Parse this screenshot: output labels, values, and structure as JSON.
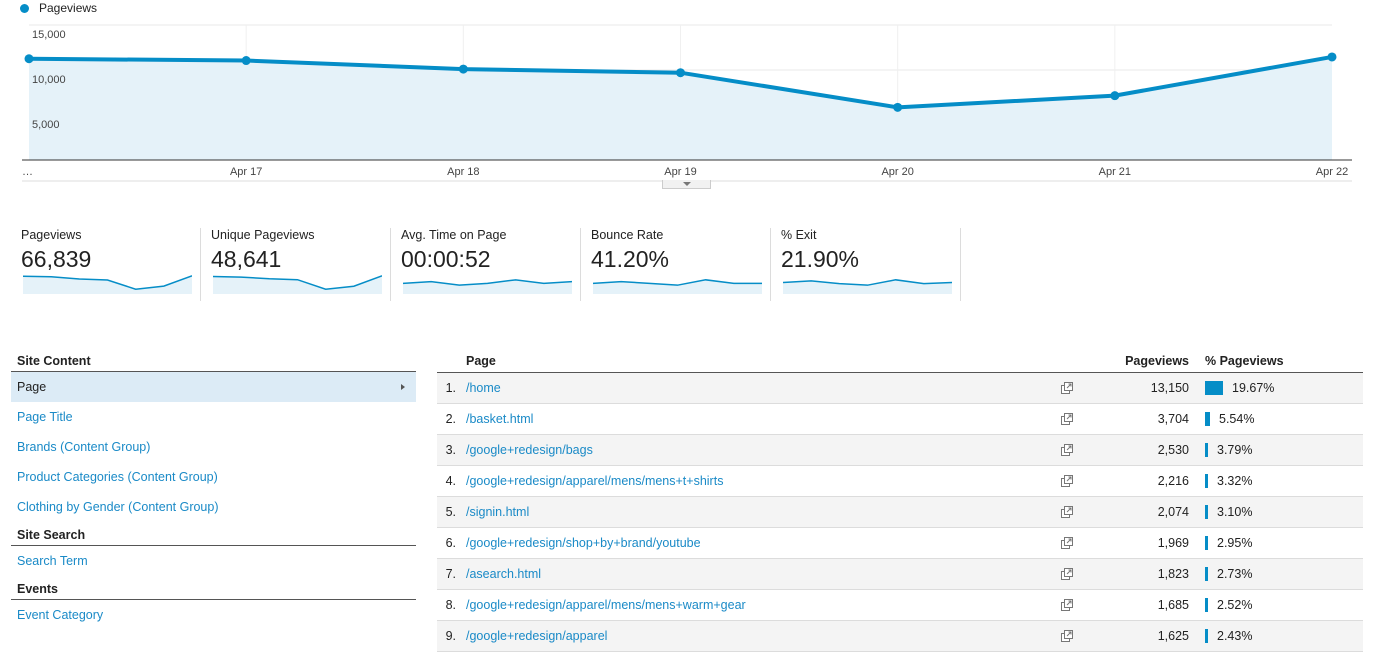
{
  "chart_data": {
    "type": "area",
    "legend": "Pageviews",
    "categories": [
      "…",
      "Apr 17",
      "Apr 18",
      "Apr 19",
      "Apr 20",
      "Apr 21",
      "Apr 22"
    ],
    "values": [
      11250,
      11050,
      10100,
      9700,
      5850,
      7150,
      11450
    ],
    "y_ticks": [
      "15,000",
      "10,000",
      "5,000"
    ],
    "y_tick_values": [
      15000,
      10000,
      5000
    ],
    "ylim": [
      0,
      15000
    ],
    "color": "#058dc7",
    "fill": "#e5f2f9",
    "grid": true,
    "legend_position": "top-left"
  },
  "metrics": [
    {
      "label": "Pageviews",
      "value": "66,839",
      "trend": [
        11250,
        11050,
        10100,
        9700,
        5850,
        7150,
        11450
      ]
    },
    {
      "label": "Unique Pageviews",
      "value": "48,641",
      "trend": [
        8200,
        8000,
        7500,
        7200,
        4300,
        5200,
        8400
      ]
    },
    {
      "label": "Avg. Time on Page",
      "value": "00:00:52",
      "trend": [
        52,
        53,
        51,
        52,
        54,
        52,
        53
      ]
    },
    {
      "label": "Bounce Rate",
      "value": "41.20%",
      "trend": [
        41,
        41.5,
        41,
        40.5,
        42,
        41,
        41
      ]
    },
    {
      "label": "% Exit",
      "value": "21.90%",
      "trend": [
        22,
        22.3,
        21.8,
        21.5,
        22.5,
        21.8,
        22
      ]
    }
  ],
  "sidebar": {
    "site_content": "Site Content",
    "content_items": [
      "Page",
      "Page Title",
      "Brands (Content Group)",
      "Product Categories (Content Group)",
      "Clothing by Gender (Content Group)"
    ],
    "site_search": "Site Search",
    "search_items": [
      "Search Term"
    ],
    "events": "Events",
    "event_items": [
      "Event Category"
    ]
  },
  "table": {
    "col_page": "Page",
    "col_pageviews": "Pageviews",
    "col_pct": "% Pageviews",
    "rows": [
      {
        "num": "1.",
        "page": "/home",
        "pageviews": "13,150",
        "pct": "19.67%",
        "pct_value": 19.67
      },
      {
        "num": "2.",
        "page": "/basket.html",
        "pageviews": "3,704",
        "pct": "5.54%",
        "pct_value": 5.54
      },
      {
        "num": "3.",
        "page": "/google+redesign/bags",
        "pageviews": "2,530",
        "pct": "3.79%",
        "pct_value": 3.79
      },
      {
        "num": "4.",
        "page": "/google+redesign/apparel/mens/mens+t+shirts",
        "pageviews": "2,216",
        "pct": "3.32%",
        "pct_value": 3.32
      },
      {
        "num": "5.",
        "page": "/signin.html",
        "pageviews": "2,074",
        "pct": "3.10%",
        "pct_value": 3.1
      },
      {
        "num": "6.",
        "page": "/google+redesign/shop+by+brand/youtube",
        "pageviews": "1,969",
        "pct": "2.95%",
        "pct_value": 2.95
      },
      {
        "num": "7.",
        "page": "/asearch.html",
        "pageviews": "1,823",
        "pct": "2.73%",
        "pct_value": 2.73
      },
      {
        "num": "8.",
        "page": "/google+redesign/apparel/mens/mens+warm+gear",
        "pageviews": "1,685",
        "pct": "2.52%",
        "pct_value": 2.52
      },
      {
        "num": "9.",
        "page": "/google+redesign/apparel",
        "pageviews": "1,625",
        "pct": "2.43%",
        "pct_value": 2.43
      }
    ]
  }
}
